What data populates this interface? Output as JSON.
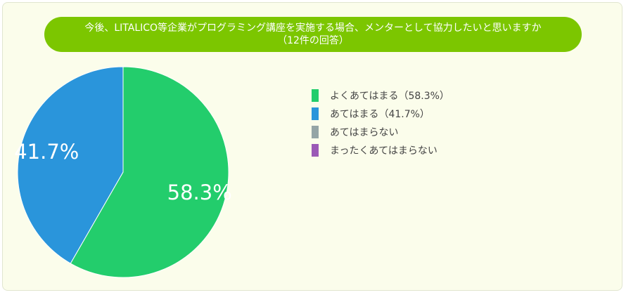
{
  "chart_data": {
    "type": "pie",
    "title": "今後、LITALICO等企業がプログラミング講座を実施する場合、メンターとして協力したいと思いますか",
    "subtitle": "（12件の回答）",
    "slices": [
      {
        "label": "よくあてはまる（58.3%）",
        "value": 58.3,
        "color": "#23cd6c",
        "data_label": "58.3%"
      },
      {
        "label": "あてはまる（41.7%）",
        "value": 41.7,
        "color": "#2a95db",
        "data_label": "41.7%"
      },
      {
        "label": "あてはまらない",
        "value": 0,
        "color": "#95a5a6",
        "data_label": ""
      },
      {
        "label": "まったくあてはまらない",
        "value": 0,
        "color": "#9b59b6",
        "data_label": ""
      }
    ],
    "legend_position": "right"
  }
}
